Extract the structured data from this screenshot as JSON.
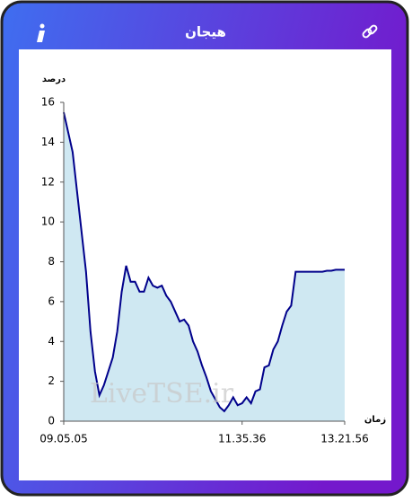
{
  "chart_data": {
    "type": "area",
    "title": "هیجان",
    "ylabel": "درصد",
    "xlabel": "زمان",
    "annotation": "LiveTSE.ir",
    "categories": [
      "09.05.05",
      null,
      null,
      null,
      null,
      null,
      null,
      null,
      null,
      null,
      null,
      null,
      null,
      null,
      null,
      null,
      null,
      null,
      null,
      null,
      null,
      null,
      null,
      null,
      null,
      null,
      null,
      null,
      null,
      null,
      null,
      null,
      null,
      null,
      null,
      null,
      null,
      null,
      null,
      null,
      "11.35.36",
      null,
      null,
      null,
      null,
      null,
      null,
      null,
      null,
      null,
      null,
      null,
      null,
      null,
      null,
      null,
      null,
      null,
      null,
      null,
      null,
      null,
      null,
      "13.21.56"
    ],
    "values": [
      15.5,
      14.5,
      13.5,
      11.5,
      9.5,
      7.5,
      4.5,
      2.5,
      1.3,
      1.8,
      2.5,
      3.2,
      4.5,
      6.5,
      7.8,
      7.0,
      7.0,
      6.5,
      6.5,
      7.2,
      6.8,
      6.7,
      6.8,
      6.3,
      6.0,
      5.5,
      5.0,
      5.1,
      4.8,
      4.0,
      3.5,
      2.8,
      2.2,
      1.5,
      1.1,
      0.7,
      0.5,
      0.8,
      1.2,
      0.8,
      0.9,
      1.2,
      0.9,
      1.5,
      1.6,
      2.7,
      2.8,
      3.6,
      4.0,
      4.8,
      5.5,
      5.8,
      7.5,
      7.5,
      7.5,
      7.5,
      7.5,
      7.5,
      7.5,
      7.55,
      7.55,
      7.6,
      7.6,
      7.6
    ],
    "color": "#00008b",
    "fill": "#cfe8f2",
    "ylim": [
      0,
      16
    ],
    "yticks": [
      0,
      2,
      4,
      6,
      8,
      10,
      12,
      14,
      16
    ],
    "grid": false
  }
}
